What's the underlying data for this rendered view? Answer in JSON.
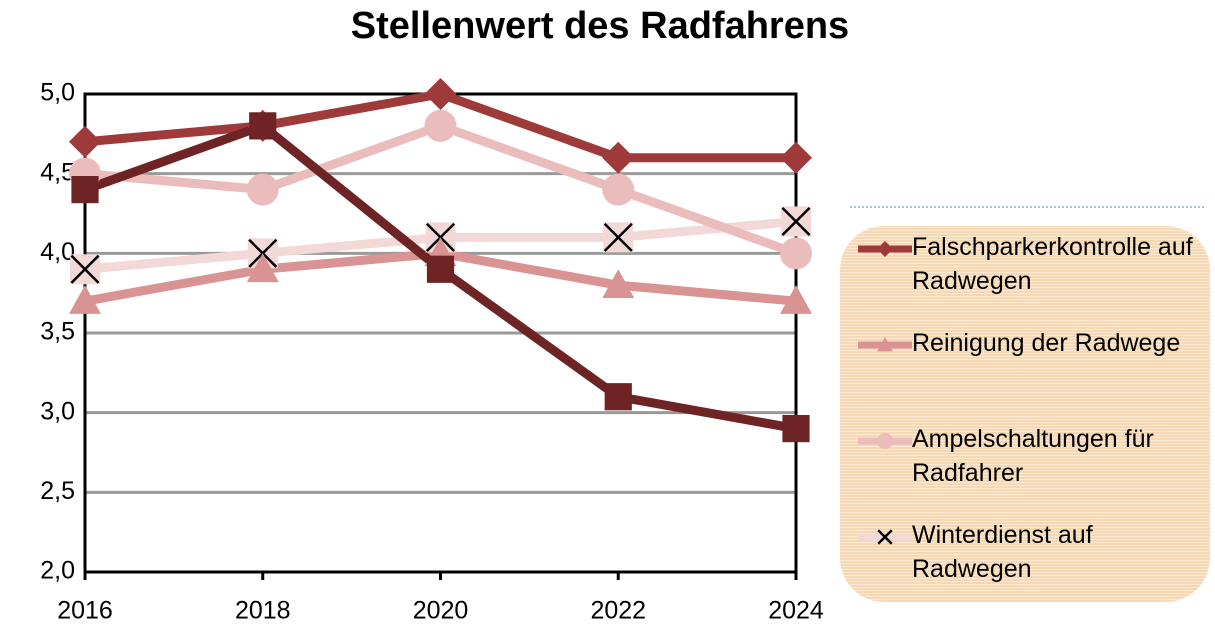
{
  "chart_data": {
    "type": "line",
    "title": "Stellenwert des Radfahrens",
    "x": [
      2016,
      2018,
      2020,
      2022,
      2024
    ],
    "xlim": [
      2016,
      2024
    ],
    "xticks": [
      2016,
      2018,
      2020,
      2022,
      2024
    ],
    "ylim": [
      2,
      5
    ],
    "yticks": [
      {
        "value": 2,
        "label": "2,0"
      },
      {
        "value": 2.5,
        "label": "2,5"
      },
      {
        "value": 3,
        "label": "3,0"
      },
      {
        "value": 3.5,
        "label": "3,5"
      },
      {
        "value": 4,
        "label": "4,0"
      },
      {
        "value": 4.5,
        "label": "4,5"
      },
      {
        "value": 5,
        "label": "5,0"
      }
    ],
    "grid": true,
    "series": [
      {
        "name": "Falschparkerkontrolle auf Radwegen",
        "color": "#9e3a3a",
        "marker": "diamond",
        "values": [
          4.7,
          4.8,
          5.0,
          4.6,
          4.6
        ]
      },
      {
        "name": "Reinigung der Radwege",
        "color": "#d99393",
        "marker": "triangle",
        "values": [
          3.7,
          3.9,
          4.0,
          3.8,
          3.7
        ]
      },
      {
        "name": "Ampelschaltungen für Radfahrer",
        "color": "#ebbcbc",
        "marker": "circle",
        "values": [
          4.5,
          4.4,
          4.8,
          4.4,
          4.0
        ]
      },
      {
        "name": "Winterdienst auf Radwegen",
        "color": "#f3d8d8",
        "marker": "x",
        "values": [
          3.9,
          4.0,
          4.1,
          4.1,
          4.2
        ]
      },
      {
        "color": "#6e2424",
        "marker": "square",
        "values": [
          4.4,
          4.8,
          3.9,
          3.1,
          2.9
        ]
      }
    ]
  }
}
